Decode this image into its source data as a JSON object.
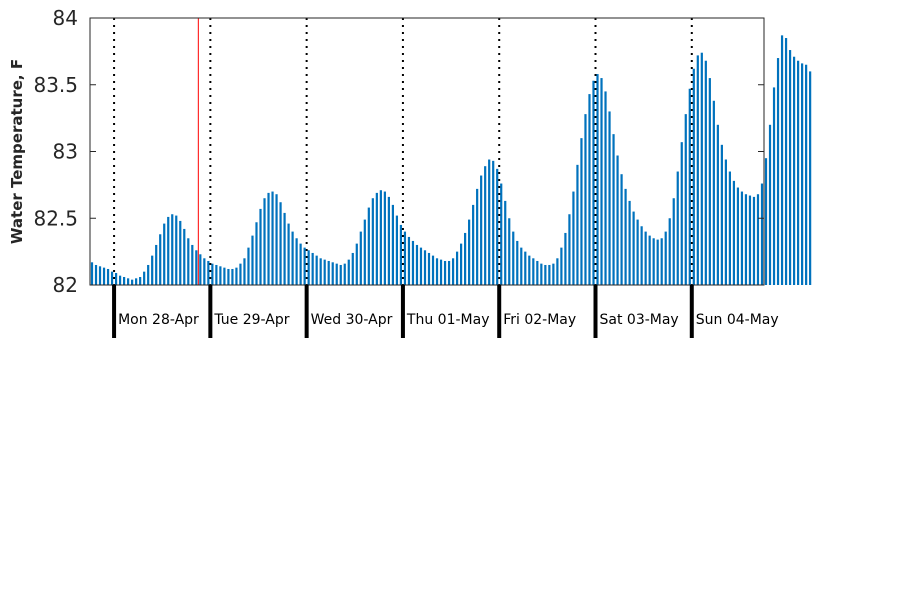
{
  "chart_data": {
    "type": "bar",
    "title": "",
    "xlabel": "",
    "ylabel": "Water Temperature, F",
    "ylim": [
      82,
      84
    ],
    "yticks": [
      82,
      82.5,
      83,
      83.5,
      84
    ],
    "ytick_labels": [
      "82",
      "82.5",
      "83",
      "83.5",
      "84"
    ],
    "x_start_hour": -6,
    "x_end_hour": 162,
    "bar_step_hours": 1,
    "day_labels": [
      "Mon 28-Apr",
      "Tue 29-Apr",
      "Wed 30-Apr",
      "Thu 01-May",
      "Fri 02-May",
      "Sat 03-May",
      "Sun 04-May"
    ],
    "day_boundary_hours": [
      0,
      24,
      48,
      72,
      96,
      120,
      144
    ],
    "now_marker_hour": 21,
    "bar_color": "#0072bd",
    "marker_color": "#ff0000",
    "values": [
      82.17,
      82.15,
      82.14,
      82.13,
      82.12,
      82.1,
      82.09,
      82.07,
      82.06,
      82.05,
      82.04,
      82.05,
      82.06,
      82.1,
      82.15,
      82.22,
      82.3,
      82.38,
      82.46,
      82.51,
      82.53,
      82.52,
      82.48,
      82.42,
      82.35,
      82.3,
      82.26,
      82.23,
      82.2,
      82.18,
      82.16,
      82.15,
      82.14,
      82.13,
      82.12,
      82.12,
      82.13,
      82.16,
      82.2,
      82.28,
      82.37,
      82.47,
      82.57,
      82.65,
      82.69,
      82.7,
      82.68,
      82.62,
      82.54,
      82.46,
      82.4,
      82.35,
      82.31,
      82.28,
      82.26,
      82.24,
      82.22,
      82.2,
      82.19,
      82.18,
      82.17,
      82.16,
      82.15,
      82.16,
      82.19,
      82.24,
      82.31,
      82.4,
      82.49,
      82.58,
      82.65,
      82.69,
      82.71,
      82.7,
      82.66,
      82.6,
      82.52,
      82.45,
      82.4,
      82.36,
      82.33,
      82.3,
      82.28,
      82.26,
      82.24,
      82.22,
      82.2,
      82.19,
      82.18,
      82.18,
      82.2,
      82.25,
      82.31,
      82.39,
      82.49,
      82.6,
      82.72,
      82.82,
      82.89,
      82.94,
      82.93,
      82.87,
      82.76,
      82.63,
      82.5,
      82.4,
      82.33,
      82.28,
      82.25,
      82.22,
      82.2,
      82.18,
      82.16,
      82.15,
      82.15,
      82.16,
      82.2,
      82.28,
      82.39,
      82.53,
      82.7,
      82.9,
      83.1,
      83.28,
      83.43,
      83.53,
      83.58,
      83.55,
      83.45,
      83.3,
      83.13,
      82.97,
      82.83,
      82.72,
      82.63,
      82.55,
      82.49,
      82.44,
      82.4,
      82.37,
      82.35,
      82.34,
      82.35,
      82.4,
      82.5,
      82.65,
      82.85,
      83.07,
      83.28,
      83.47,
      83.62,
      83.72,
      83.74,
      83.68,
      83.55,
      83.38,
      83.2,
      83.05,
      82.94,
      82.85,
      82.78,
      82.73,
      82.7,
      82.68,
      82.67,
      82.66,
      82.68,
      82.76,
      82.95,
      83.2,
      83.48,
      83.7,
      83.87,
      83.85,
      83.76,
      83.71,
      83.68,
      83.66,
      83.65,
      83.6
    ]
  }
}
